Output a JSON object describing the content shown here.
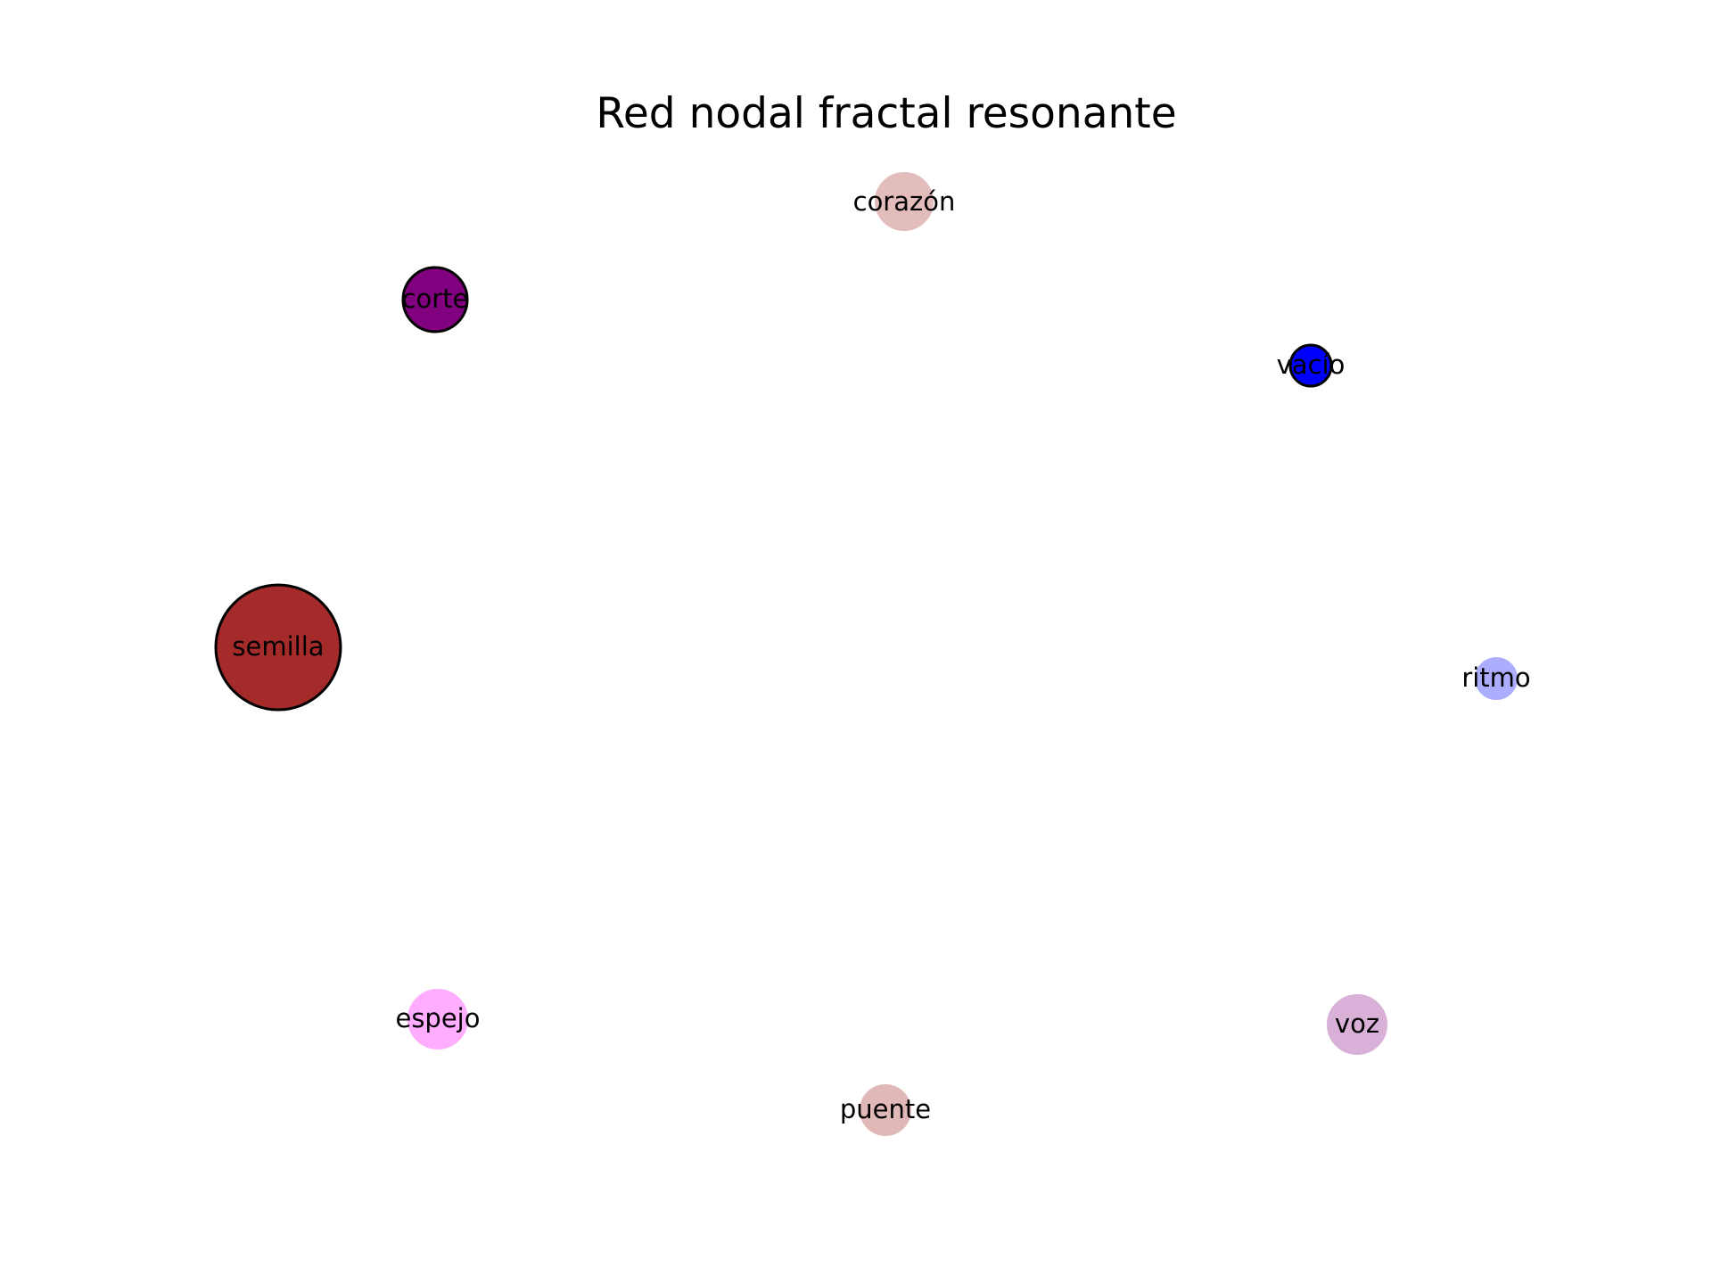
{
  "diagram": {
    "title": "Red nodal fractal resonante",
    "nodes": [
      {
        "label": "corazón",
        "color": "#e3bcbc",
        "opacity": 1.0,
        "outlined": false
      },
      {
        "label": "corte",
        "color": "#800080",
        "opacity": 1.0,
        "outlined": true
      },
      {
        "label": "vacío",
        "color": "#0000ff",
        "opacity": 1.0,
        "outlined": true
      },
      {
        "label": "semilla",
        "color": "#a52a2a",
        "opacity": 1.0,
        "outlined": true
      },
      {
        "label": "ritmo",
        "color": "#adadff",
        "opacity": 1.0,
        "outlined": false
      },
      {
        "label": "espejo",
        "color": "#ffadff",
        "opacity": 1.0,
        "outlined": false
      },
      {
        "label": "voz",
        "color": "#d8b0d8",
        "opacity": 1.0,
        "outlined": false
      },
      {
        "label": "puente",
        "color": "#e0b8b8",
        "opacity": 1.0,
        "outlined": false
      }
    ]
  }
}
